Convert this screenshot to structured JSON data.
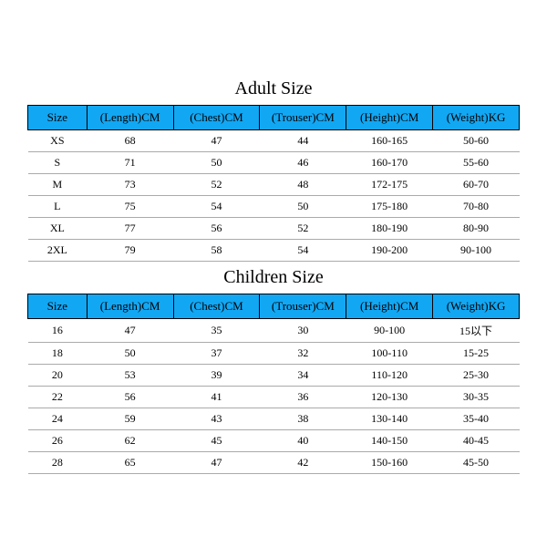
{
  "header_bg": "#12a7f3",
  "border_color": "#000000",
  "row_border_color": "#aaaaaa",
  "title_fontsize": 20,
  "header_fontsize": 13,
  "cell_fontsize": 12,
  "adult": {
    "title": "Adult Size",
    "columns": [
      "Size",
      "(Length)CM",
      "(Chest)CM",
      "(Trouser)CM",
      "(Height)CM",
      "(Weight)KG"
    ],
    "rows": [
      [
        "XS",
        "68",
        "47",
        "44",
        "160-165",
        "50-60"
      ],
      [
        "S",
        "71",
        "50",
        "46",
        "160-170",
        "55-60"
      ],
      [
        "M",
        "73",
        "52",
        "48",
        "172-175",
        "60-70"
      ],
      [
        "L",
        "75",
        "54",
        "50",
        "175-180",
        "70-80"
      ],
      [
        "XL",
        "77",
        "56",
        "52",
        "180-190",
        "80-90"
      ],
      [
        "2XL",
        "79",
        "58",
        "54",
        "190-200",
        "90-100"
      ]
    ]
  },
  "children": {
    "title": "Children Size",
    "columns": [
      "Size",
      "(Length)CM",
      "(Chest)CM",
      "(Trouser)CM",
      "(Height)CM",
      "(Weight)KG"
    ],
    "rows": [
      [
        "16",
        "47",
        "35",
        "30",
        "90-100",
        "15以下"
      ],
      [
        "18",
        "50",
        "37",
        "32",
        "100-110",
        "15-25"
      ],
      [
        "20",
        "53",
        "39",
        "34",
        "110-120",
        "25-30"
      ],
      [
        "22",
        "56",
        "41",
        "36",
        "120-130",
        "30-35"
      ],
      [
        "24",
        "59",
        "43",
        "38",
        "130-140",
        "35-40"
      ],
      [
        "26",
        "62",
        "45",
        "40",
        "140-150",
        "40-45"
      ],
      [
        "28",
        "65",
        "47",
        "42",
        "150-160",
        "45-50"
      ]
    ]
  }
}
